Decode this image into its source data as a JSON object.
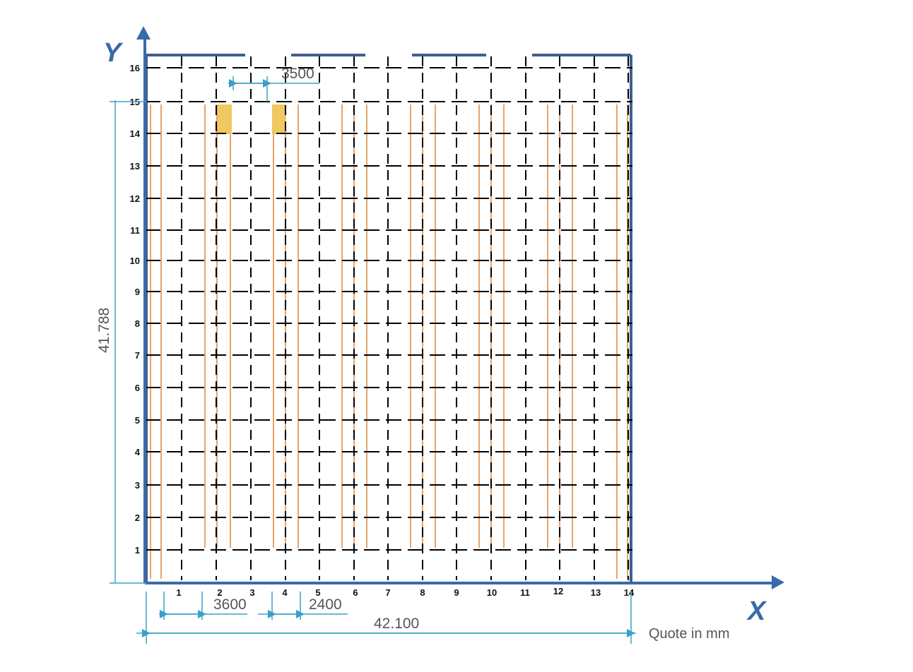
{
  "axes": {
    "x_title": "X",
    "y_title": "Y",
    "color": "#3a6aa8"
  },
  "grid": {
    "columns": [
      "1",
      "2",
      "3",
      "4",
      "5",
      "6",
      "7",
      "8",
      "9",
      "10",
      "11",
      "12",
      "13",
      "14"
    ],
    "rows": [
      "1",
      "2",
      "3",
      "4",
      "5",
      "6",
      "7",
      "8",
      "9",
      "10",
      "11",
      "12",
      "13",
      "14",
      "15",
      "16"
    ],
    "line_color": "#000000"
  },
  "dimensions": {
    "total_width": "42.100",
    "total_height": "41.788",
    "aisle_width": "3500",
    "rack_pitch": "3600",
    "rack_depth": "2400",
    "unit_note": "Quote in mm",
    "line_color": "#3aa0c8"
  },
  "racks": {
    "color": "#e8a46a",
    "highlight_color": "#f0c860"
  }
}
